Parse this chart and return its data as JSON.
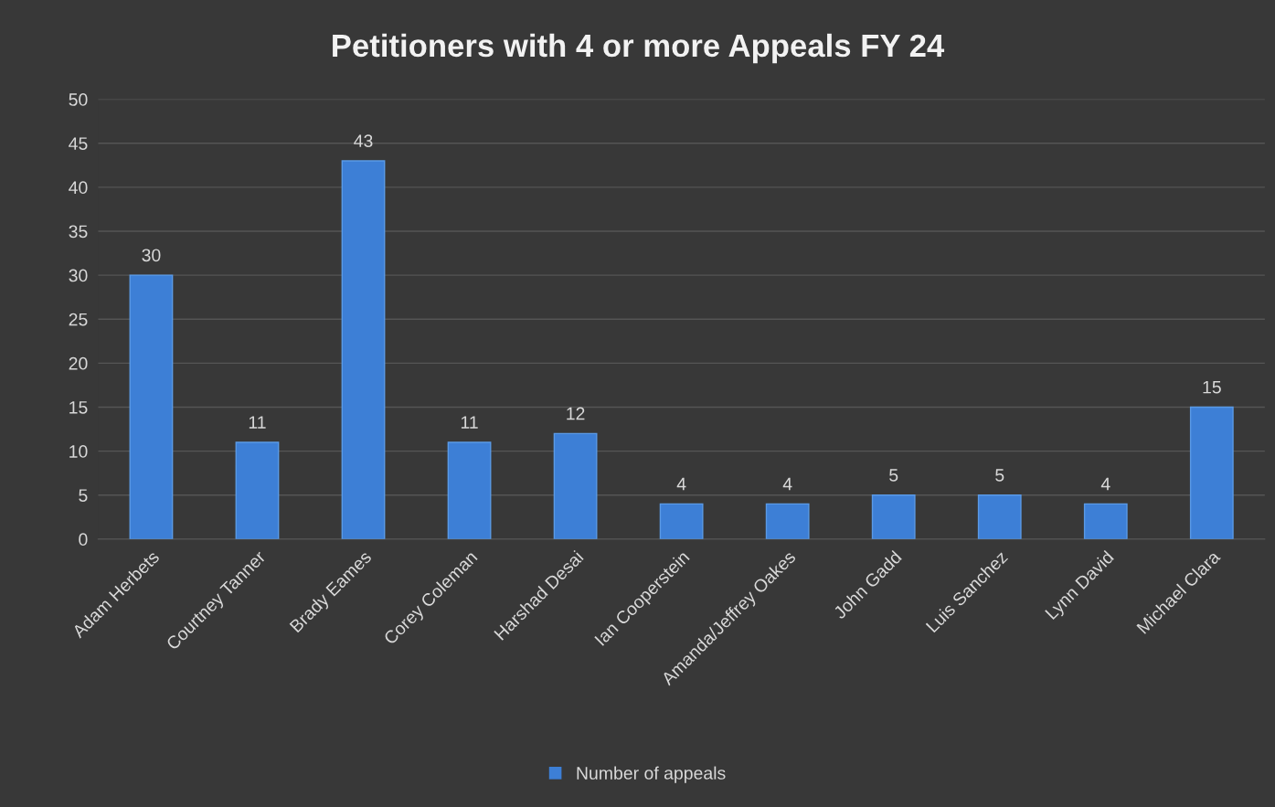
{
  "chart_data": {
    "type": "bar",
    "title": "Petitioners with 4 or more Appeals FY 24",
    "categories": [
      "Adam Herbets",
      "Courtney Tanner",
      "Brady Eames",
      "Corey Coleman",
      "Harshad Desai",
      "Ian Cooperstein",
      "Amanda/Jeffrey Oakes",
      "John Gadd",
      "Luis Sanchez",
      "Lynn David",
      "Michael Clara"
    ],
    "series": [
      {
        "name": "Number of appeals",
        "color": "#3d7fd6",
        "values": [
          30,
          11,
          43,
          11,
          12,
          4,
          4,
          5,
          5,
          4,
          15
        ]
      }
    ],
    "ylim": [
      0,
      50
    ],
    "yticks": [
      0,
      5,
      10,
      15,
      20,
      25,
      30,
      35,
      40,
      45,
      50
    ],
    "grid": "y",
    "legend": "bottom",
    "data_labels": true
  }
}
